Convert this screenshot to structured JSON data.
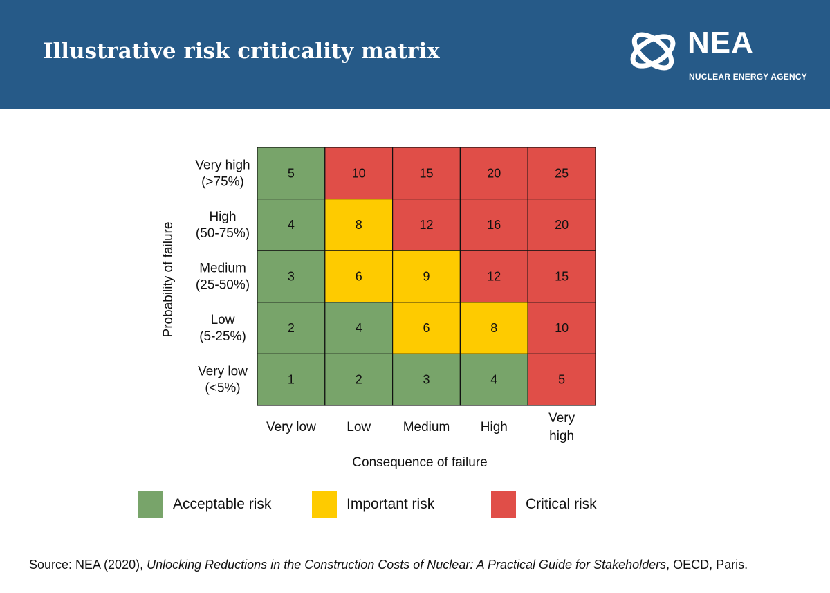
{
  "header": {
    "title": "Illustrative risk criticality matrix",
    "logo_text": "NEA",
    "logo_subtitle": "NUCLEAR ENERGY AGENCY",
    "background_color": "#265a88"
  },
  "chart_data": {
    "type": "heatmap",
    "title": "Illustrative risk criticality matrix",
    "xlabel": "Consequence of failure",
    "ylabel": "Probability of failure",
    "x_categories": [
      [
        "Very low"
      ],
      [
        "Low"
      ],
      [
        "Medium"
      ],
      [
        "High"
      ],
      [
        "Very",
        "high"
      ]
    ],
    "y_categories_top_to_bottom": [
      [
        "Very high",
        "(>75%)"
      ],
      [
        "High",
        "(50-75%)"
      ],
      [
        "Medium",
        "(25-50%)"
      ],
      [
        "Low",
        "(5-25%)"
      ],
      [
        "Very low",
        "(<5%)"
      ]
    ],
    "values_top_to_bottom": [
      [
        5,
        10,
        15,
        20,
        25
      ],
      [
        4,
        8,
        12,
        16,
        20
      ],
      [
        3,
        6,
        9,
        12,
        15
      ],
      [
        2,
        4,
        6,
        8,
        10
      ],
      [
        1,
        2,
        3,
        4,
        5
      ]
    ],
    "risk_levels_top_to_bottom": [
      [
        "acceptable",
        "critical",
        "critical",
        "critical",
        "critical"
      ],
      [
        "acceptable",
        "important",
        "critical",
        "critical",
        "critical"
      ],
      [
        "acceptable",
        "important",
        "important",
        "critical",
        "critical"
      ],
      [
        "acceptable",
        "acceptable",
        "important",
        "important",
        "critical"
      ],
      [
        "acceptable",
        "acceptable",
        "acceptable",
        "acceptable",
        "critical"
      ]
    ],
    "colors": {
      "acceptable": "#78a46a",
      "important": "#fecb00",
      "critical": "#e04e48"
    },
    "legend": [
      {
        "key": "acceptable",
        "label": "Acceptable risk"
      },
      {
        "key": "important",
        "label": "Important risk"
      },
      {
        "key": "critical",
        "label": "Critical risk"
      }
    ],
    "legend_placement": "bottom"
  },
  "legend": {
    "items": [
      {
        "label": "Acceptable risk",
        "color": "#78a46a"
      },
      {
        "label": "Important risk",
        "color": "#fecb00"
      },
      {
        "label": "Critical risk",
        "color": "#e04e48"
      }
    ]
  },
  "source": {
    "prefix": "Source: NEA (2020), ",
    "title": "Unlocking Reductions in the Construction Costs of Nuclear: A Practical Guide for Stakeholders",
    "suffix": ", OECD, Paris."
  }
}
